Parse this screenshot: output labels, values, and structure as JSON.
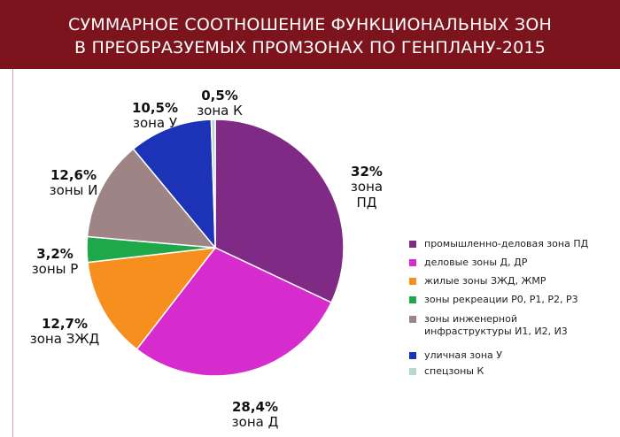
{
  "header": {
    "title_line1": "СУММАРНОЕ СООТНОШЕНИЕ ФУНКЦИОНАЛЬНЫХ ЗОН",
    "title_line2": "В  ПРЕОБРАЗУЕМЫХ  ПРОМЗОНАХ ПО ГЕНПЛАНУ-2015",
    "bg_color": "#7b141d"
  },
  "chart_data": {
    "type": "pie",
    "title": "СУММАРНОЕ СООТНОШЕНИЕ ФУНКЦИОНАЛЬНЫХ ЗОН В  ПРЕОБРАЗУЕМЫХ  ПРОМЗОНАХ ПО ГЕНПЛАНУ-2015",
    "legend_position": "right",
    "slices": [
      {
        "label": "зона ПД",
        "legend": "промышленно-деловая зона ПД",
        "pct_text": "32%",
        "value": 32,
        "color": "#7f2b86"
      },
      {
        "label": "зона Д",
        "legend": "деловые зоны Д, ДР",
        "pct_text": "28,4%",
        "value": 28.4,
        "color": "#d62bcd"
      },
      {
        "label": "зона ЗЖД",
        "legend": "жилые зоны ЗЖД, ЖМР",
        "pct_text": "12,7%",
        "value": 12.7,
        "color": "#f68f1e"
      },
      {
        "label": "зоны Р",
        "legend": "зоны рекреации Р0, Р1, Р2, Р3",
        "pct_text": "3,2%",
        "value": 3.2,
        "color": "#1fa84a"
      },
      {
        "label": "зоны И",
        "legend": "зоны инженерной инфраструктуры И1, И2, И3",
        "legend_lines": [
          "зоны инженерной",
          "инфраструктуры И1, И2, И3"
        ],
        "pct_text": "12,6%",
        "value": 12.6,
        "color": "#9f8485"
      },
      {
        "label": "зона У",
        "legend": "уличная зона У",
        "pct_text": "10,5%",
        "value": 10.5,
        "color": "#1c33b7"
      },
      {
        "label": "зона К",
        "legend": "спецзоны К",
        "pct_text": "0,5%",
        "value": 0.5,
        "color": "#b6d8cd"
      }
    ]
  }
}
